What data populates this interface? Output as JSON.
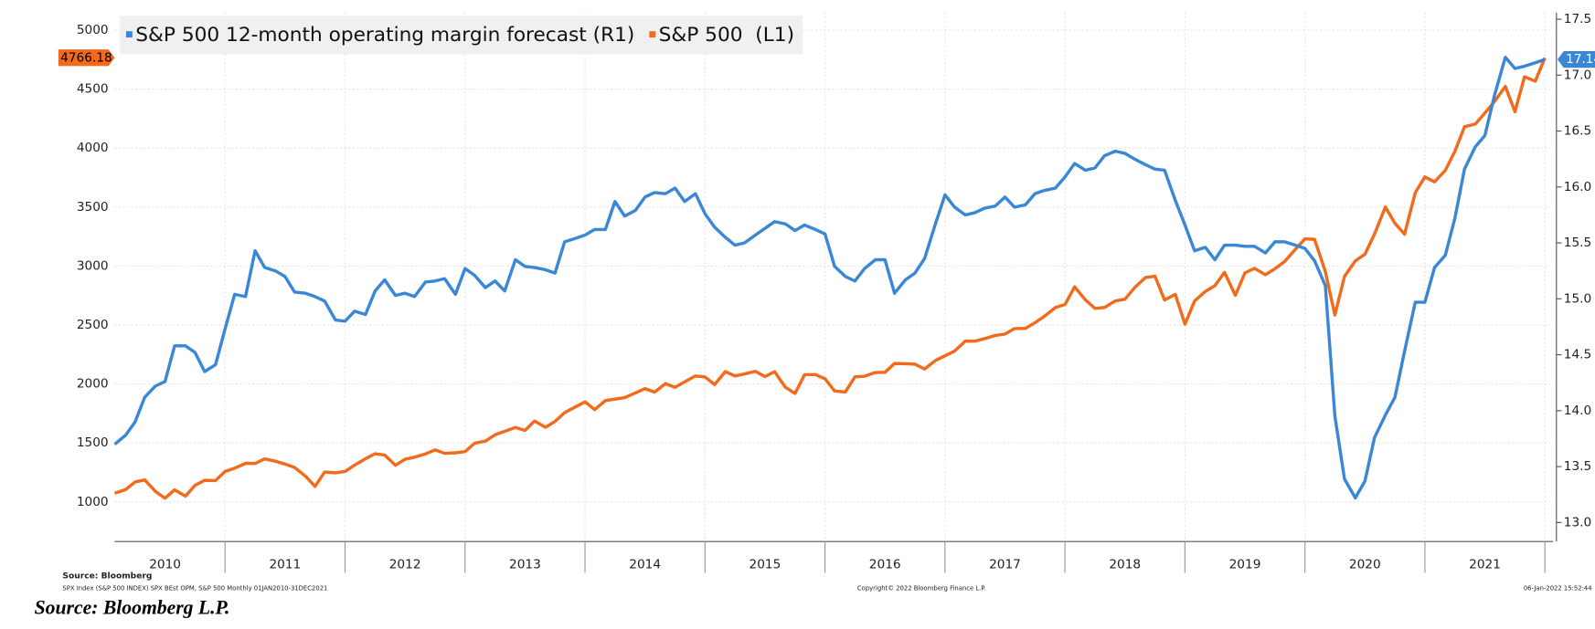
{
  "chart_data": {
    "type": "line",
    "series": [
      {
        "name": "S&P 500 12-month operating margin forecast (R1)",
        "color": "#3a87d6",
        "axis": "y2",
        "values": [
          13.7,
          13.78,
          13.9,
          14.12,
          14.22,
          14.26,
          14.58,
          14.58,
          14.52,
          14.35,
          14.41,
          14.73,
          15.04,
          15.02,
          15.43,
          15.28,
          15.25,
          15.2,
          15.06,
          15.05,
          15.02,
          14.98,
          14.81,
          14.8,
          14.89,
          14.86,
          15.07,
          15.17,
          15.03,
          15.05,
          15.02,
          15.15,
          15.16,
          15.18,
          15.04,
          15.27,
          15.21,
          15.1,
          15.16,
          15.07,
          15.35,
          15.29,
          15.28,
          15.26,
          15.23,
          15.51,
          15.54,
          15.57,
          15.62,
          15.62,
          15.87,
          15.74,
          15.79,
          15.91,
          15.95,
          15.94,
          15.99,
          15.87,
          15.94,
          15.76,
          15.64,
          15.55,
          15.48,
          15.5,
          15.57,
          15.63,
          15.69,
          15.67,
          15.61,
          15.66,
          15.62,
          15.58,
          15.29,
          15.2,
          15.16,
          15.27,
          15.35,
          15.35,
          15.05,
          15.17,
          15.23,
          15.36,
          15.67,
          15.93,
          15.82,
          15.75,
          15.77,
          15.81,
          15.83,
          15.91,
          15.82,
          15.84,
          15.94,
          15.97,
          15.99,
          16.09,
          16.21,
          16.15,
          16.17,
          16.28,
          16.32,
          16.3,
          16.25,
          16.2,
          16.16,
          16.15,
          15.88,
          15.66,
          15.43,
          15.46,
          15.35,
          15.48,
          15.48,
          15.47,
          15.47,
          15.41,
          15.51,
          15.51,
          15.48,
          15.45,
          15.34,
          15.12,
          13.95,
          13.39,
          13.22,
          13.37,
          13.76,
          13.96,
          14.12,
          14.53,
          14.97,
          14.97,
          15.28,
          15.39,
          15.72,
          16.16,
          16.36,
          16.46,
          16.82,
          17.16,
          17.06,
          17.08,
          17.11,
          17.14
        ]
      },
      {
        "name": "S&P 500  (L1)",
        "color": "#f26a1b",
        "values": [
          1074,
          1104,
          1169,
          1187,
          1089,
          1031,
          1102,
          1049,
          1141,
          1183,
          1181,
          1258,
          1286,
          1327,
          1326,
          1364,
          1345,
          1321,
          1292,
          1219,
          1131,
          1253,
          1247,
          1258,
          1312,
          1366,
          1408,
          1398,
          1310,
          1362,
          1379,
          1407,
          1441,
          1412,
          1416,
          1426,
          1498,
          1515,
          1569,
          1598,
          1631,
          1606,
          1686,
          1633,
          1682,
          1757,
          1806,
          1848,
          1783,
          1859,
          1872,
          1884,
          1924,
          1960,
          1931,
          2003,
          1972,
          2018,
          2068,
          2059,
          1995,
          2105,
          2068,
          2086,
          2107,
          2063,
          2104,
          1972,
          1920,
          2079,
          2080,
          2044,
          1940,
          1932,
          2060,
          2065,
          2097,
          2099,
          2174,
          2171,
          2168,
          2126,
          2199,
          2239,
          2279,
          2364,
          2363,
          2384,
          2412,
          2423,
          2470,
          2472,
          2519,
          2575,
          2648,
          2674,
          2824,
          2714,
          2641,
          2648,
          2705,
          2718,
          2816,
          2902,
          2914,
          2712,
          2760,
          2507,
          2704,
          2784,
          2834,
          2946,
          2752,
          2942,
          2980,
          2926,
          2977,
          3038,
          3141,
          3231,
          3226,
          2954,
          2585,
          2912,
          3044,
          3100,
          3271,
          3500,
          3363,
          3270,
          3622,
          3756,
          3714,
          3811,
          3973,
          4181,
          4204,
          4298,
          4395,
          4523,
          4308,
          4605,
          4567,
          4766.18
        ]
      }
    ],
    "x": [
      2010.08,
      2010.17,
      2010.25,
      2010.33,
      2010.42,
      2010.5,
      2010.58,
      2010.67,
      2010.75,
      2010.83,
      2010.92,
      2011,
      2011.08,
      2011.17,
      2011.25,
      2011.33,
      2011.42,
      2011.5,
      2011.58,
      2011.67,
      2011.75,
      2011.83,
      2011.92,
      2012,
      2012.08,
      2012.17,
      2012.25,
      2012.33,
      2012.42,
      2012.5,
      2012.58,
      2012.67,
      2012.75,
      2012.83,
      2012.92,
      2013,
      2013.08,
      2013.17,
      2013.25,
      2013.33,
      2013.42,
      2013.5,
      2013.58,
      2013.67,
      2013.75,
      2013.83,
      2013.92,
      2014,
      2014.08,
      2014.17,
      2014.25,
      2014.33,
      2014.42,
      2014.5,
      2014.58,
      2014.67,
      2014.75,
      2014.83,
      2014.92,
      2015,
      2015.08,
      2015.17,
      2015.25,
      2015.33,
      2015.42,
      2015.5,
      2015.58,
      2015.67,
      2015.75,
      2015.83,
      2015.92,
      2016,
      2016.08,
      2016.17,
      2016.25,
      2016.33,
      2016.42,
      2016.5,
      2016.58,
      2016.67,
      2016.75,
      2016.83,
      2016.92,
      2017,
      2017.08,
      2017.17,
      2017.25,
      2017.33,
      2017.42,
      2017.5,
      2017.58,
      2017.67,
      2017.75,
      2017.83,
      2017.92,
      2018,
      2018.08,
      2018.17,
      2018.25,
      2018.33,
      2018.42,
      2018.5,
      2018.58,
      2018.67,
      2018.75,
      2018.83,
      2018.92,
      2019,
      2019.08,
      2019.17,
      2019.25,
      2019.33,
      2019.42,
      2019.5,
      2019.58,
      2019.67,
      2019.75,
      2019.83,
      2019.92,
      2020,
      2020.08,
      2020.17,
      2020.25,
      2020.33,
      2020.42,
      2020.5,
      2020.58,
      2020.67,
      2020.75,
      2020.83,
      2020.92,
      2021,
      2021.08,
      2021.17,
      2021.25,
      2021.33,
      2021.42,
      2021.5,
      2021.58,
      2021.67,
      2021.75,
      2021.83,
      2021.92,
      2022
    ],
    "xlim": [
      2010.08,
      2022.07
    ],
    "xticks": [
      {
        "value": 2010.5,
        "label": "2010"
      },
      {
        "value": 2011.5,
        "label": "2011"
      },
      {
        "value": 2012.5,
        "label": "2012"
      },
      {
        "value": 2013.5,
        "label": "2013"
      },
      {
        "value": 2014.5,
        "label": "2014"
      },
      {
        "value": 2015.5,
        "label": "2015"
      },
      {
        "value": 2016.5,
        "label": "2016"
      },
      {
        "value": 2017.5,
        "label": "2017"
      },
      {
        "value": 2018.5,
        "label": "2018"
      },
      {
        "value": 2019.5,
        "label": "2019"
      },
      {
        "value": 2020.5,
        "label": "2020"
      },
      {
        "value": 2021.5,
        "label": "2021"
      }
    ],
    "ylim": [
      664,
      5150
    ],
    "yticks": [
      1000,
      1500,
      2000,
      2500,
      3000,
      3500,
      4000,
      4500,
      5000
    ],
    "y2lim": [
      12.83,
      17.56
    ],
    "y2ticks": [
      {
        "value": 13,
        "label": "13.0"
      },
      13.5,
      {
        "value": 14,
        "label": "14.0"
      },
      14.5,
      {
        "value": 15,
        "label": "15.0"
      },
      15.5,
      {
        "value": 16,
        "label": "16.0"
      },
      16.5,
      {
        "value": 17,
        "label": "17.0"
      },
      17.5
    ],
    "grid": true,
    "legend": "top-left",
    "source": "Source: Bloomberg",
    "footnote": "SPX Index (S&P 500 INDEX) SPX BEst OPM, S&P 500  Monthly 01JAN2010-31DEC2021",
    "copyright": "Copyright© 2022 Bloomberg Finance L.P.",
    "timestamp": "06-Jan-2022 15:52:44",
    "caption": "Source: Bloomberg L.P."
  }
}
